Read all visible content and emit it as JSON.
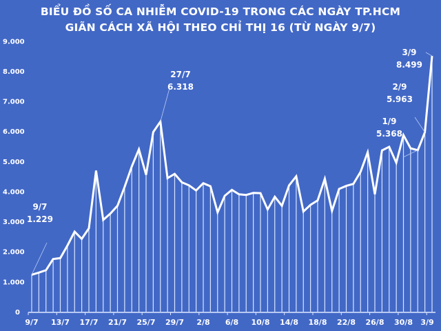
{
  "title_line1": "BIỂU ĐỒ SỐ CA NHIỄM COVID-19 TRONG CÁC NGÀY TP.HCM",
  "title_line2": "GIÃN CÁCH XÃ HỘI THEO CHỈ THỊ 16 (TỪ NGÀY 9/7)",
  "colors": {
    "background": "#4268c6",
    "line": "#ffffff",
    "drop_lines": "#cfe0ff"
  },
  "chart_data": {
    "type": "line",
    "title": "BIỂU ĐỒ SỐ CA NHIỄM COVID-19 TRONG CÁC NGÀY TP.HCM GIÃN CÁCH XÃ HỘI THEO CHỈ THỊ 16 (TỪ NGÀY 9/7)",
    "xlabel": "",
    "ylabel": "",
    "ylim": [
      0,
      9000
    ],
    "yticks": [
      "0",
      "1.000",
      "2.000",
      "3.000",
      "4.000",
      "5.000",
      "6.000",
      "7.000",
      "8.000",
      "9.000"
    ],
    "xticks": [
      "9/7",
      "13/7",
      "17/7",
      "21/7",
      "25/7",
      "29/7",
      "2/8",
      "6/8",
      "10/8",
      "14/8",
      "18/8",
      "22/8",
      "26/8",
      "30/8",
      "3/9"
    ],
    "grid": false,
    "legend": null,
    "x": [
      "9/7",
      "10/7",
      "11/7",
      "12/7",
      "13/7",
      "14/7",
      "15/7",
      "16/7",
      "17/7",
      "18/7",
      "19/7",
      "20/7",
      "21/7",
      "22/7",
      "23/7",
      "24/7",
      "25/7",
      "26/7",
      "27/7",
      "28/7",
      "29/7",
      "30/7",
      "31/7",
      "1/8",
      "2/8",
      "3/8",
      "4/8",
      "5/8",
      "6/8",
      "7/8",
      "8/8",
      "9/8",
      "10/8",
      "11/8",
      "12/8",
      "13/8",
      "14/8",
      "15/8",
      "16/8",
      "17/8",
      "18/8",
      "19/8",
      "20/8",
      "21/8",
      "22/8",
      "23/8",
      "24/8",
      "25/8",
      "26/8",
      "27/8",
      "28/8",
      "29/8",
      "30/8",
      "31/8",
      "1/9",
      "2/9",
      "3/9"
    ],
    "series": [
      {
        "name": "Số ca nhiễm",
        "values": [
          1229,
          1300,
          1380,
          1750,
          1780,
          2200,
          2660,
          2420,
          2770,
          4690,
          3050,
          3260,
          3520,
          4150,
          4830,
          5400,
          4550,
          5970,
          6318,
          4440,
          4580,
          4300,
          4200,
          4030,
          4270,
          4170,
          3300,
          3850,
          4050,
          3900,
          3880,
          3950,
          3940,
          3400,
          3820,
          3520,
          4200,
          4500,
          3330,
          3550,
          3700,
          4420,
          3350,
          4080,
          4180,
          4250,
          4650,
          5300,
          3900,
          5360,
          5480,
          4950,
          5870,
          5430,
          5368,
          5963,
          8499
        ]
      }
    ],
    "annotations": [
      {
        "date": "9/7",
        "value": "1.229"
      },
      {
        "date": "27/7",
        "value": "6.318"
      },
      {
        "date": "1/9",
        "value": "5.368"
      },
      {
        "date": "2/9",
        "value": "5.963"
      },
      {
        "date": "3/9",
        "value": "8.499"
      }
    ]
  }
}
